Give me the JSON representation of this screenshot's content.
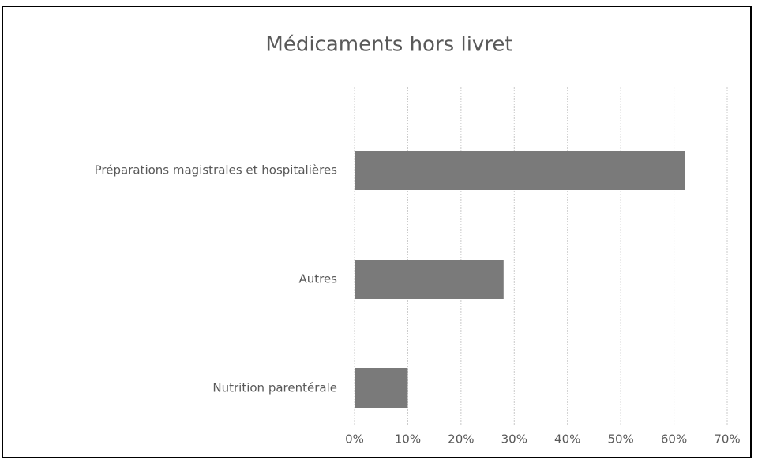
{
  "chart_data": {
    "type": "bar",
    "orientation": "horizontal",
    "title": "Médicaments hors livret",
    "categories": [
      "Préparations magistrales et hospitalières",
      "Autres",
      "Nutrition parentérale"
    ],
    "values": [
      62,
      28,
      10
    ],
    "color": "#7a7a7a",
    "xlim": [
      0,
      70
    ],
    "xticks": [
      {
        "value": 0,
        "label": "0%"
      },
      {
        "value": 10,
        "label": "10%"
      },
      {
        "value": 20,
        "label": "20%"
      },
      {
        "value": 30,
        "label": "30%"
      },
      {
        "value": 40,
        "label": "40%"
      },
      {
        "value": 50,
        "label": "50%"
      },
      {
        "value": 60,
        "label": "60%"
      },
      {
        "value": 70,
        "label": "70%"
      }
    ],
    "grid": true
  }
}
